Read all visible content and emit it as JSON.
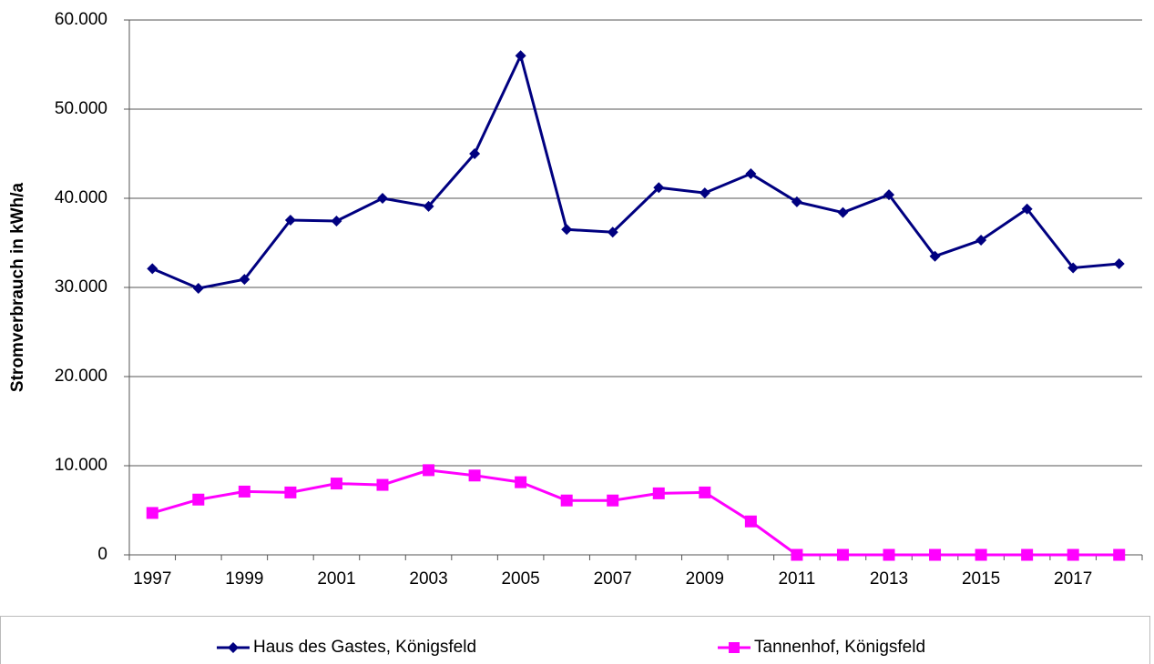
{
  "chart_data": {
    "type": "line",
    "y_label": "Stromverbrauch in kWh/a",
    "categories": [
      "1997",
      null,
      "1999",
      null,
      "2001",
      null,
      "2003",
      null,
      "2005",
      null,
      "2007",
      null,
      "2009",
      null,
      "2011",
      null,
      "2013",
      null,
      "2015",
      null,
      "2017",
      null
    ],
    "series": [
      {
        "name": "Haus des Gastes, Königsfeld",
        "color": "#000080",
        "marker": "diamond",
        "values": [
          32100,
          29900,
          30900,
          37550,
          37450,
          40000,
          39100,
          45000,
          56000,
          36500,
          36200,
          41200,
          40600,
          42750,
          39600,
          38400,
          40400,
          33500,
          35300,
          38800,
          32200,
          32650
        ]
      },
      {
        "name": "Tannenhof, Königsfeld",
        "color": "#ff00ff",
        "marker": "square",
        "values": [
          4700,
          6200,
          7100,
          7000,
          8000,
          7850,
          9500,
          8900,
          8150,
          6100,
          6100,
          6900,
          7000,
          3750,
          0,
          0,
          0,
          0,
          0,
          0,
          0,
          0
        ]
      }
    ],
    "ylim": [
      0,
      60000
    ],
    "yticks": [
      0,
      {
        "value": 10000,
        "label": "10.000"
      },
      {
        "value": 20000,
        "label": "20.000"
      },
      {
        "value": 30000,
        "label": "30.000"
      },
      {
        "value": 40000,
        "label": "40.000"
      },
      {
        "value": 50000,
        "label": "50.000"
      },
      {
        "value": 60000,
        "label": "60.000"
      }
    ],
    "grid": true,
    "legend": "bottom"
  }
}
